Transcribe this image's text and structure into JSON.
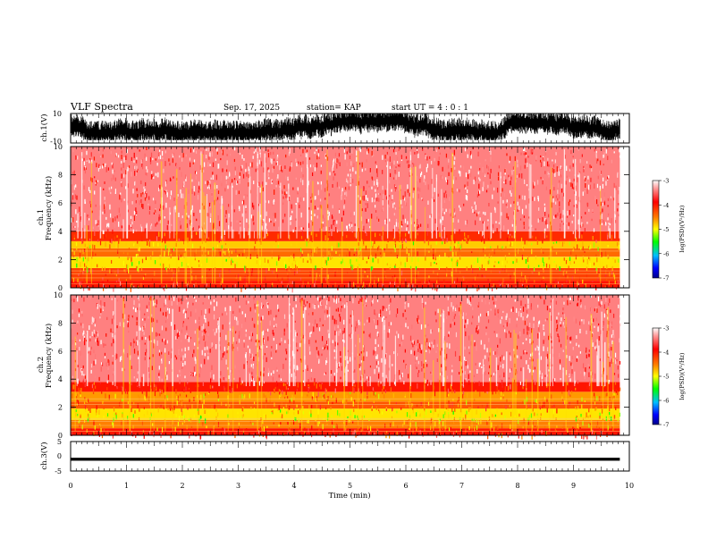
{
  "header": {
    "title": "VLF Spectra",
    "date": "Sep. 17, 2025",
    "station": "station= KAP",
    "start_ut": "start  UT =   4 : 0  : 1"
  },
  "panels": {
    "ch1_wave": {
      "ylabel": "ch.1(V)",
      "ytick_top": "10",
      "ytick_bottom": "-10"
    },
    "ch1_spec": {
      "ylabel_top": "ch.1",
      "ylabel_bottom": "Frequency (kHz)",
      "yticks": [
        "0",
        "2",
        "4",
        "6",
        "8",
        "10"
      ]
    },
    "ch2_spec": {
      "ylabel_top": "ch.2",
      "ylabel_bottom": "Frequency (kHz)",
      "yticks": [
        "0",
        "2",
        "4",
        "6",
        "8",
        "10"
      ]
    },
    "ch3_wave": {
      "ylabel": "ch.3(V)",
      "ytick_top": "5",
      "ytick_mid": "0",
      "ytick_bottom": "-5"
    }
  },
  "colorbar": {
    "label": "log(PSD)(V²/Hz)",
    "ticks": [
      "-3",
      "-4",
      "-5",
      "-6",
      "-7"
    ],
    "colors": [
      "#ffffff",
      "#ff9a9a",
      "#ff0000",
      "#ff7f00",
      "#ffff00",
      "#00ff00",
      "#00bfff",
      "#0000ff",
      "#00008b"
    ]
  },
  "xaxis": {
    "label": "Time (min)",
    "ticks": [
      "0",
      "1",
      "2",
      "3",
      "4",
      "5",
      "6",
      "7",
      "8",
      "9",
      "10"
    ]
  },
  "chart_data": [
    {
      "type": "line",
      "title": "ch.1(V)",
      "xlabel": "Time (min)",
      "ylabel": "ch.1(V)",
      "xlim": [
        0,
        10
      ],
      "ylim": [
        -10,
        10
      ],
      "data_end_min": 9.83,
      "series": [
        {
          "values_range": [
            -8,
            10
          ]
        }
      ]
    },
    {
      "type": "heatmap",
      "title": "ch.1",
      "xlabel": "Time (min)",
      "ylabel": "Frequency (kHz)",
      "xlim": [
        0,
        10
      ],
      "ylim": [
        0,
        10
      ],
      "data_end_min": 9.83,
      "colorbar_range": [
        -7,
        -3
      ],
      "bands": [
        {
          "freq_khz": [
            0,
            0.5
          ],
          "log_psd": -4.0
        },
        {
          "freq_khz": [
            0.5,
            1.4
          ],
          "log_psd": -4.2
        },
        {
          "freq_khz": [
            1.4,
            2.2
          ],
          "log_psd": -4.9
        },
        {
          "freq_khz": [
            2.2,
            2.8
          ],
          "log_psd": -4.4
        },
        {
          "freq_khz": [
            2.8,
            3.3
          ],
          "log_psd": -4.8
        },
        {
          "freq_khz": [
            3.3,
            4.0
          ],
          "log_psd": -4.1
        },
        {
          "freq_khz": [
            4.0,
            10.0
          ],
          "log_psd": -3.4
        }
      ]
    },
    {
      "type": "heatmap",
      "title": "ch.2",
      "xlabel": "Time (min)",
      "ylabel": "Frequency (kHz)",
      "xlim": [
        0,
        10
      ],
      "ylim": [
        0,
        10
      ],
      "data_end_min": 9.83,
      "colorbar_range": [
        -7,
        -3
      ],
      "bands": [
        {
          "freq_khz": [
            0,
            0.5
          ],
          "log_psd": -4.0
        },
        {
          "freq_khz": [
            0.5,
            1.1
          ],
          "log_psd": -4.5
        },
        {
          "freq_khz": [
            1.1,
            1.9
          ],
          "log_psd": -4.9
        },
        {
          "freq_khz": [
            1.9,
            2.4
          ],
          "log_psd": -4.3
        },
        {
          "freq_khz": [
            2.4,
            3.1
          ],
          "log_psd": -4.6
        },
        {
          "freq_khz": [
            3.1,
            3.8
          ],
          "log_psd": -4.0
        },
        {
          "freq_khz": [
            3.8,
            10.0
          ],
          "log_psd": -3.4
        }
      ]
    },
    {
      "type": "line",
      "title": "ch.3(V)",
      "xlabel": "Time (min)",
      "ylabel": "ch.3(V)",
      "xlim": [
        0,
        10
      ],
      "ylim": [
        -5,
        5
      ],
      "data_end_min": 9.83,
      "series": [
        {
          "values_range": [
            -1.5,
            -0.5
          ]
        }
      ]
    }
  ]
}
